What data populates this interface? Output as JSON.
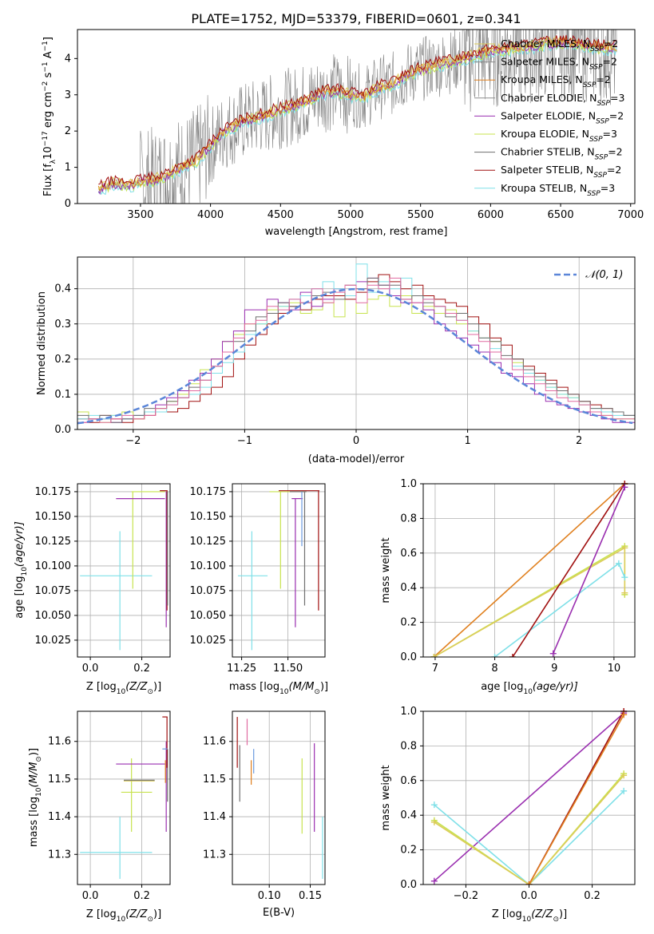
{
  "colors": {
    "chabrier_miles": "#dccc5a",
    "salpeter_miles": "#8a8a8a",
    "kroupa_miles": "#e0801f",
    "chabrier_elodie": "#8c8c8c",
    "salpeter_elodie": "#9a2fb0",
    "kroupa_elodie": "#c7e34e",
    "chabrier_stelib": "#6f6f6f",
    "salpeter_stelib": "#a01010",
    "kroupa_stelib": "#7fe0e8",
    "gaussian": "#5b86d8",
    "pink": "#e06aa0",
    "blue_extra": "#6a9ae0"
  },
  "chart_data": [
    {
      "id": "spectrum",
      "type": "line",
      "title": "PLATE=1752, MJD=53379, FIBERID=0601, z=0.341",
      "xlabel": "wavelength [Angstrom, rest frame]",
      "ylabel": "Flux [f",
      "ylabel_sub": "λ",
      "ylabel_rest": "10",
      "ylabel_exp": "−17",
      "ylabel_tail": " erg cm",
      "ylabel_exp2": "−2",
      "ylabel_tail2": " s",
      "ylabel_exp3": "−1",
      "ylabel_tail3": " A",
      "ylabel_exp4": "−1",
      "ylabel_end": "]",
      "xlim": [
        3050,
        7030
      ],
      "ylim": [
        0,
        4.8
      ],
      "xticks": [
        "3500",
        "4000",
        "4500",
        "5000",
        "5500",
        "6000",
        "6500",
        "7000"
      ],
      "yticks": [
        "0",
        "1",
        "2",
        "3",
        "4"
      ],
      "model_curve": {
        "x": [
          3200,
          3300,
          3400,
          3500,
          3600,
          3700,
          3800,
          3900,
          4000,
          4100,
          4200,
          4300,
          4400,
          4500,
          4600,
          4700,
          4800,
          4900,
          5000,
          5100,
          5200,
          5300,
          5400,
          5500,
          5600,
          5700,
          5800,
          5900,
          6000,
          6100,
          6200,
          6300,
          6400,
          6500,
          6600,
          6700,
          6800
        ],
        "y": [
          0.4,
          0.55,
          0.5,
          0.6,
          0.65,
          0.8,
          1.0,
          1.2,
          1.6,
          2.0,
          2.2,
          2.35,
          2.45,
          2.6,
          2.7,
          2.85,
          3.05,
          3.1,
          3.0,
          2.95,
          3.2,
          3.3,
          3.55,
          3.7,
          3.8,
          3.9,
          4.0,
          4.1,
          4.2,
          4.25,
          4.3,
          4.35,
          4.4,
          4.45,
          4.4,
          4.35,
          4.3
        ]
      },
      "legend": [
        {
          "label": "Chabrier MILES, N",
          "sub": "SSP",
          "tail": "=2",
          "color_key": "chabrier_miles"
        },
        {
          "label": "Salpeter MILES, N",
          "sub": "SSP",
          "tail": "=2",
          "color_key": "salpeter_miles"
        },
        {
          "label": "Kroupa MILES, N",
          "sub": "SSP",
          "tail": "=2",
          "color_key": "kroupa_miles"
        },
        {
          "label": "Chabrier ELODIE, N",
          "sub": "SSP",
          "tail": "=3",
          "color_key": "chabrier_elodie"
        },
        {
          "label": "Salpeter ELODIE, N",
          "sub": "SSP",
          "tail": "=2",
          "color_key": "salpeter_elodie"
        },
        {
          "label": "Kroupa ELODIE, N",
          "sub": "SSP",
          "tail": "=3",
          "color_key": "kroupa_elodie"
        },
        {
          "label": "Chabrier STELIB, N",
          "sub": "SSP",
          "tail": "=2",
          "color_key": "chabrier_stelib"
        },
        {
          "label": "Salpeter STELIB, N",
          "sub": "SSP",
          "tail": "=2",
          "color_key": "salpeter_stelib"
        },
        {
          "label": "Kroupa STELIB, N",
          "sub": "SSP",
          "tail": "=3",
          "color_key": "kroupa_stelib"
        }
      ],
      "legend_placement": "top-right",
      "grid": false
    },
    {
      "id": "residuals",
      "type": "histogram",
      "xlabel": "(data-model)/error",
      "ylabel": "Normed distribution",
      "xlim": [
        -2.5,
        2.5
      ],
      "ylim": [
        0,
        0.49
      ],
      "xticks": [
        "−2",
        "−1",
        "0",
        "1",
        "2"
      ],
      "yticks": [
        "0.0",
        "0.1",
        "0.2",
        "0.3",
        "0.4"
      ],
      "legend": [
        {
          "label": "𝒩(0, 1)",
          "color_key": "gaussian",
          "style": "dashed"
        }
      ],
      "legend_placement": "top-right",
      "grid": true,
      "bin_edges": [
        -2.5,
        -2.4,
        -2.3,
        -2.2,
        -2.1,
        -2.0,
        -1.9,
        -1.8,
        -1.7,
        -1.6,
        -1.5,
        -1.4,
        -1.3,
        -1.2,
        -1.1,
        -1.0,
        -0.9,
        -0.8,
        -0.7,
        -0.6,
        -0.5,
        -0.4,
        -0.3,
        -0.2,
        -0.1,
        0.0,
        0.1,
        0.2,
        0.3,
        0.4,
        0.5,
        0.6,
        0.7,
        0.8,
        0.9,
        1.0,
        1.1,
        1.2,
        1.3,
        1.4,
        1.5,
        1.6,
        1.7,
        1.8,
        1.9,
        2.0,
        2.1,
        2.2,
        2.3,
        2.4,
        2.5
      ],
      "series": [
        {
          "color_key": "salpeter_stelib",
          "values": [
            0.03,
            0.02,
            0.04,
            0.03,
            0.02,
            0.03,
            0.04,
            0.05,
            0.05,
            0.06,
            0.08,
            0.1,
            0.12,
            0.15,
            0.2,
            0.24,
            0.27,
            0.3,
            0.33,
            0.35,
            0.34,
            0.37,
            0.38,
            0.38,
            0.37,
            0.39,
            0.42,
            0.44,
            0.42,
            0.4,
            0.41,
            0.38,
            0.37,
            0.36,
            0.35,
            0.32,
            0.3,
            0.26,
            0.24,
            0.2,
            0.18,
            0.16,
            0.14,
            0.12,
            0.1,
            0.08,
            0.07,
            0.06,
            0.05,
            0.04
          ]
        },
        {
          "color_key": "kroupa_elodie",
          "values": [
            0.05,
            0.03,
            0.02,
            0.04,
            0.05,
            0.03,
            0.05,
            0.06,
            0.08,
            0.1,
            0.13,
            0.17,
            0.2,
            0.25,
            0.27,
            0.3,
            0.3,
            0.34,
            0.35,
            0.36,
            0.33,
            0.34,
            0.36,
            0.32,
            0.38,
            0.33,
            0.37,
            0.38,
            0.35,
            0.38,
            0.33,
            0.35,
            0.33,
            0.34,
            0.3,
            0.28,
            0.26,
            0.25,
            0.2,
            0.19,
            0.16,
            0.14,
            0.12,
            0.1,
            0.09,
            0.07,
            0.05,
            0.04,
            0.03,
            0.03
          ]
        },
        {
          "color_key": "salpeter_elodie",
          "values": [
            0.02,
            0.03,
            0.03,
            0.02,
            0.03,
            0.04,
            0.05,
            0.07,
            0.09,
            0.11,
            0.14,
            0.16,
            0.2,
            0.25,
            0.28,
            0.34,
            0.34,
            0.37,
            0.36,
            0.34,
            0.39,
            0.35,
            0.37,
            0.4,
            0.38,
            0.42,
            0.43,
            0.41,
            0.38,
            0.36,
            0.36,
            0.34,
            0.3,
            0.28,
            0.26,
            0.24,
            0.22,
            0.19,
            0.16,
            0.15,
            0.13,
            0.1,
            0.08,
            0.07,
            0.06,
            0.05,
            0.04,
            0.03,
            0.02,
            0.02
          ]
        },
        {
          "color_key": "kroupa_stelib",
          "values": [
            0.03,
            0.04,
            0.03,
            0.04,
            0.03,
            0.04,
            0.05,
            0.05,
            0.07,
            0.09,
            0.1,
            0.12,
            0.16,
            0.19,
            0.22,
            0.27,
            0.3,
            0.33,
            0.35,
            0.37,
            0.38,
            0.4,
            0.42,
            0.4,
            0.38,
            0.47,
            0.39,
            0.42,
            0.4,
            0.43,
            0.38,
            0.37,
            0.35,
            0.33,
            0.31,
            0.28,
            0.26,
            0.23,
            0.2,
            0.18,
            0.16,
            0.14,
            0.12,
            0.1,
            0.09,
            0.07,
            0.06,
            0.05,
            0.04,
            0.04
          ]
        },
        {
          "color_key": "chabrier_stelib",
          "values": [
            0.04,
            0.03,
            0.04,
            0.02,
            0.03,
            0.04,
            0.06,
            0.06,
            0.08,
            0.09,
            0.12,
            0.14,
            0.18,
            0.22,
            0.25,
            0.28,
            0.32,
            0.33,
            0.36,
            0.35,
            0.36,
            0.38,
            0.39,
            0.37,
            0.41,
            0.4,
            0.43,
            0.41,
            0.41,
            0.37,
            0.38,
            0.36,
            0.35,
            0.32,
            0.33,
            0.3,
            0.26,
            0.25,
            0.21,
            0.2,
            0.17,
            0.15,
            0.13,
            0.11,
            0.1,
            0.08,
            0.06,
            0.06,
            0.05,
            0.04
          ]
        },
        {
          "color_key": "pink",
          "values": [
            0.02,
            0.03,
            0.02,
            0.03,
            0.04,
            0.03,
            0.04,
            0.06,
            0.07,
            0.09,
            0.11,
            0.14,
            0.18,
            0.22,
            0.26,
            0.3,
            0.31,
            0.35,
            0.34,
            0.37,
            0.36,
            0.4,
            0.36,
            0.39,
            0.41,
            0.36,
            0.41,
            0.4,
            0.43,
            0.37,
            0.36,
            0.37,
            0.35,
            0.33,
            0.31,
            0.27,
            0.25,
            0.22,
            0.2,
            0.17,
            0.15,
            0.13,
            0.11,
            0.09,
            0.08,
            0.07,
            0.05,
            0.04,
            0.03,
            0.03
          ]
        }
      ],
      "gaussian": {
        "mean": 0,
        "sigma": 1
      }
    }
  ],
  "age_Z_panel": {
    "xlabel": "Z [log",
    "xlabel_sub": "10",
    "xlabel_rest": "(Z/Z",
    "xlabel_sun": "⊙",
    "xlabel_end": ")]",
    "ylabel": "age  [log",
    "ylabel_sub": "10",
    "ylabel_rest": "(age/yr)]",
    "xticks": [
      "0.0",
      "0.2"
    ],
    "yticks": [
      "10.025",
      "10.050",
      "10.075",
      "10.100",
      "10.125",
      "10.150",
      "10.175"
    ]
  },
  "age_mass_panel": {
    "xlabel": "mass [log",
    "xlabel_sub": "10",
    "xlabel_rest": "(M/M",
    "xlabel_sun": "⊙",
    "xlabel_end": ")]",
    "xticks": [
      "11.25",
      "11.50"
    ],
    "yticks": [
      "10.025",
      "10.050",
      "10.075",
      "10.100",
      "10.125",
      "10.150",
      "10.175"
    ]
  },
  "mass_Z_panel": {
    "xlabel": "Z [log",
    "xlabel_sub": "10",
    "xlabel_rest": "(Z/Z",
    "xlabel_sun": "⊙",
    "xlabel_end": ")]",
    "ylabel": "mass [log",
    "ylabel_sub": "10",
    "ylabel_rest": "(M/M",
    "ylabel_sun": "⊙",
    "ylabel_end": ")]",
    "xticks": [
      "0.0",
      "0.2"
    ],
    "yticks": [
      "11.3",
      "11.4",
      "11.5",
      "11.6"
    ]
  },
  "mass_ebv_panel": {
    "xlabel": "E(B-V)",
    "xticks": [
      "0.10",
      "0.15"
    ],
    "yticks": [
      "11.3",
      "11.4",
      "11.5",
      "11.6"
    ]
  },
  "weight_age_panel": {
    "xlabel": "age  [log",
    "xlabel_sub": "10",
    "xlabel_rest": "(age/yr)]",
    "ylabel": "mass weight",
    "xticks": [
      "7",
      "8",
      "9",
      "10"
    ],
    "yticks": [
      "0.0",
      "0.2",
      "0.4",
      "0.6",
      "0.8",
      "1.0"
    ],
    "xlim": [
      6.8,
      10.35
    ],
    "ylim": [
      0,
      1
    ],
    "series": [
      {
        "color_key": "kroupa_miles",
        "x": [
          6.98,
          10.18
        ],
        "y": [
          0.0,
          1.0
        ]
      },
      {
        "color_key": "kroupa_elodie",
        "x": [
          6.98,
          10.18,
          10.18
        ],
        "y": [
          0.0,
          0.64,
          0.36
        ]
      },
      {
        "color_key": "chabrier_miles",
        "x": [
          6.98,
          10.18,
          10.18
        ],
        "y": [
          0.0,
          0.63,
          0.37
        ]
      },
      {
        "color_key": "kroupa_stelib",
        "x": [
          8.0,
          10.08,
          10.18
        ],
        "y": [
          0.0,
          0.54,
          0.46
        ]
      },
      {
        "color_key": "salpeter_stelib",
        "x": [
          8.3,
          10.18
        ],
        "y": [
          0.0,
          1.0
        ]
      },
      {
        "color_key": "salpeter_elodie",
        "x": [
          8.98,
          10.18
        ],
        "y": [
          0.02,
          0.98
        ]
      }
    ]
  },
  "weight_Z_panel": {
    "xlabel": "Z [log",
    "xlabel_sub": "10",
    "xlabel_rest": "(Z/Z",
    "xlabel_sun": "⊙",
    "xlabel_end": ")]",
    "ylabel": "mass weight",
    "xticks": [
      "−0.2",
      "0.0",
      "0.2"
    ],
    "yticks": [
      "0.0",
      "0.2",
      "0.4",
      "0.6",
      "0.8",
      "1.0"
    ],
    "xlim": [
      -0.335,
      0.335
    ],
    "ylim": [
      0,
      1
    ],
    "series": [
      {
        "color_key": "salpeter_elodie",
        "x": [
          -0.3,
          0.3
        ],
        "y": [
          0.02,
          0.99
        ]
      },
      {
        "color_key": "kroupa_stelib",
        "x": [
          -0.3,
          0.0,
          0.3
        ],
        "y": [
          0.46,
          0.0,
          0.54
        ]
      },
      {
        "color_key": "kroupa_elodie",
        "x": [
          -0.3,
          0.0,
          0.3
        ],
        "y": [
          0.37,
          0.0,
          0.64
        ]
      },
      {
        "color_key": "chabrier_miles",
        "x": [
          -0.3,
          0.0,
          0.3
        ],
        "y": [
          0.36,
          0.0,
          0.63
        ]
      },
      {
        "color_key": "salpeter_stelib",
        "x": [
          0.0,
          0.3
        ],
        "y": [
          0.0,
          1.0
        ]
      },
      {
        "color_key": "kroupa_miles",
        "x": [
          0.0,
          0.3
        ],
        "y": [
          0.0,
          0.98
        ]
      }
    ]
  }
}
